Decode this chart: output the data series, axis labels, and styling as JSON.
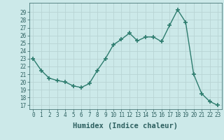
{
  "x": [
    0,
    1,
    2,
    3,
    4,
    5,
    6,
    7,
    8,
    9,
    10,
    11,
    12,
    13,
    14,
    15,
    16,
    17,
    18,
    19,
    20,
    21,
    22,
    23
  ],
  "y": [
    23,
    21.5,
    20.5,
    20.2,
    20.0,
    19.5,
    19.3,
    19.8,
    21.5,
    23.0,
    24.8,
    25.5,
    26.3,
    25.3,
    25.8,
    25.8,
    25.2,
    27.3,
    29.3,
    27.7,
    21.0,
    18.5,
    17.5,
    17.0
  ],
  "line_color": "#2d7c6e",
  "marker": "+",
  "marker_size": 4,
  "marker_lw": 1.2,
  "line_width": 1.0,
  "bg_color": "#cce9e9",
  "grid_color": "#b8d4d4",
  "xlabel": "Humidex (Indice chaleur)",
  "xlabel_fontsize": 7.5,
  "tick_fontsize": 5.5,
  "ylabel_ticks": [
    17,
    18,
    19,
    20,
    21,
    22,
    23,
    24,
    25,
    26,
    27,
    28,
    29
  ],
  "ylim": [
    16.5,
    30.2
  ],
  "xlim": [
    -0.5,
    23.5
  ],
  "xticks": [
    0,
    1,
    2,
    3,
    4,
    5,
    6,
    7,
    8,
    9,
    10,
    11,
    12,
    13,
    14,
    15,
    16,
    17,
    18,
    19,
    20,
    21,
    22,
    23
  ]
}
